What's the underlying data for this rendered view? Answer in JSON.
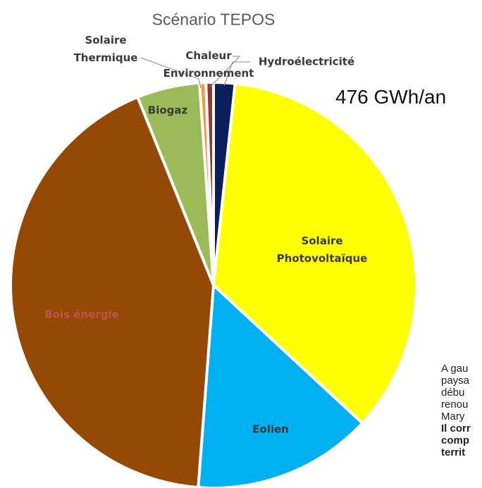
{
  "chart_data": {
    "type": "pie",
    "title": "Scénario TEPOS",
    "annotation": "476 GWh/an",
    "categories": [
      "Hydroélectricité",
      "Solaire Photovoltaïque",
      "Eolien",
      "Bois énergie",
      "Biogaz",
      "Solaire Thermique",
      "Chaleur Environnement"
    ],
    "values": [
      1.7,
      35.2,
      14.3,
      42.7,
      5,
      0.5,
      0.6
    ],
    "colors": [
      "#0b1f5c",
      "#ffff00",
      "#00b0f0",
      "#944a05",
      "#9bbb59",
      "#f79646",
      "#8b3a3a"
    ]
  },
  "side_text": {
    "lines": [
      "A gau",
      "paysa",
      "débu",
      "renou",
      "Mary"
    ],
    "bold_lines": [
      "Il corr",
      "comp",
      "territ"
    ]
  }
}
